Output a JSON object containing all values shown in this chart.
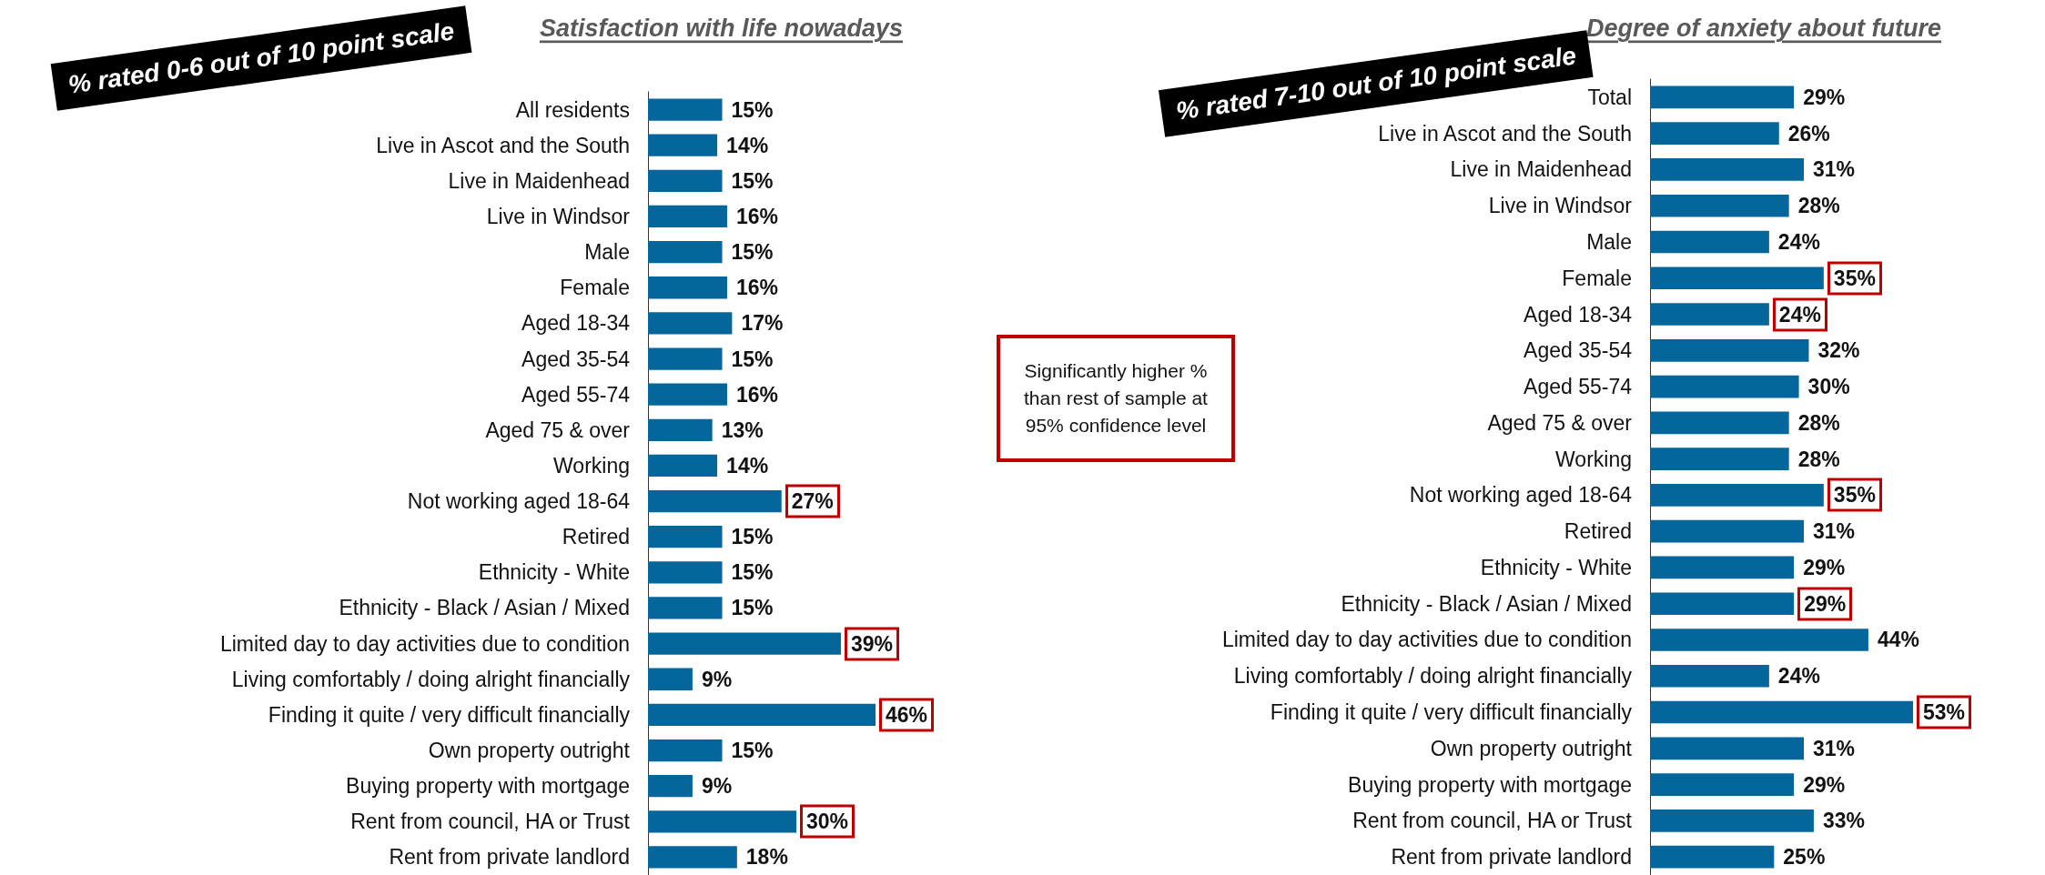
{
  "chart_data": [
    {
      "type": "bar",
      "orientation": "horizontal",
      "title": "Satisfaction with life nowadays",
      "color": "#05669b",
      "categories": [
        "All residents",
        "Live in Ascot and the South",
        "Live in Maidenhead",
        "Live in Windsor",
        "Male",
        "Female",
        "Aged 18-34",
        "Aged 35-54",
        "Aged 55-74",
        "Aged 75 & over",
        "Working",
        "Not working aged 18-64",
        "Retired",
        "Ethnicity - White",
        "Ethnicity - Black / Asian / Mixed",
        "Limited day to day activities due to condition",
        "Living comfortably / doing alright financially",
        "Finding it quite / very difficult financially",
        "Own property outright",
        "Buying property with mortgage",
        "Rent from council, HA or Trust",
        "Rent from private landlord"
      ],
      "values": [
        15,
        14,
        15,
        16,
        15,
        16,
        17,
        15,
        16,
        13,
        14,
        27,
        15,
        15,
        15,
        39,
        9,
        46,
        15,
        9,
        30,
        18
      ],
      "value_labels": [
        "15%",
        "14%",
        "15%",
        "16%",
        "15%",
        "16%",
        "17%",
        "15%",
        "16%",
        "13%",
        "14%",
        null,
        "15%",
        "15%",
        "15%",
        null,
        "9%",
        null,
        "15%",
        "9%",
        null,
        "18%"
      ],
      "annotations": [
        "% rated 0-6 out of 10 point scale",
        {
          "text": "27%",
          "x": 27,
          "y": "Not working aged 18-64"
        },
        {
          "text": "39%",
          "x": 39,
          "y": "Limited day to day activities due to condition"
        },
        {
          "text": "46%",
          "x": 46,
          "y": "Finding it quite / very difficult financially"
        },
        {
          "text": "30%",
          "x": 30,
          "y": "Rent from council, HA or Trust"
        }
      ]
    },
    {
      "type": "bar",
      "orientation": "horizontal",
      "title": "Degree of anxiety about future",
      "color": "#05669b",
      "categories": [
        "Total",
        "Live in Ascot and the South",
        "Live in Maidenhead",
        "Live in Windsor",
        "Male",
        "Female",
        "Aged 18-34",
        "Aged 35-54",
        "Aged 55-74",
        "Aged 75 & over",
        "Working",
        "Not working aged 18-64",
        "Retired",
        "Ethnicity - White",
        "Ethnicity - Black / Asian / Mixed",
        "Limited day to day activities due to condition",
        "Living comfortably / doing alright financially",
        "Finding it quite / very difficult financially",
        "Own property outright",
        "Buying property with mortgage",
        "Rent from council, HA or Trust",
        "Rent from private landlord"
      ],
      "values": [
        29,
        26,
        31,
        28,
        24,
        35,
        24,
        32,
        30,
        28,
        28,
        35,
        31,
        29,
        29,
        44,
        24,
        53,
        31,
        29,
        33,
        25
      ],
      "value_labels": [
        "29%",
        "26%",
        "31%",
        "28%",
        "24%",
        null,
        null,
        "32%",
        "30%",
        "28%",
        "28%",
        null,
        "31%",
        "29%",
        null,
        "44%",
        "24%",
        null,
        "31%",
        "29%",
        "33%",
        "25%"
      ],
      "annotations": [
        "% rated 7-10 out of 10 point scale",
        "Significantly higher % than rest of sample at 95% confidence level",
        {
          "text": "35%",
          "x": 35,
          "y": "Female"
        },
        {
          "text": "24%",
          "x": 24,
          "y": "Aged 18-34"
        },
        {
          "text": "35%",
          "x": 35,
          "y": "Not working aged 18-64"
        },
        {
          "text": "29%",
          "x": 29,
          "y": "Ethnicity - Black / Asian / Mixed"
        },
        {
          "text": "53%",
          "x": 53,
          "y": "Finding it quite / very difficult financially"
        }
      ]
    }
  ]
}
